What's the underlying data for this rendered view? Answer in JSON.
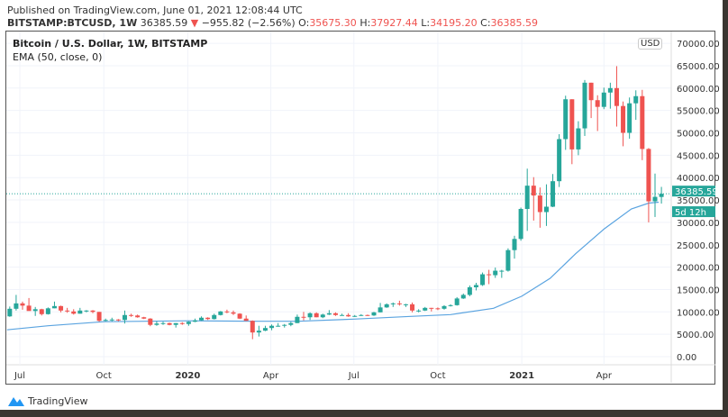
{
  "header": {
    "published": "Published on TradingView.com, June 01, 2021 12:08:44 UTC",
    "symbol": "BITSTAMP:BTCUSD, 1W",
    "last": "36385.59",
    "change": "−955.82 (−2.56%)",
    "o_label": "O:",
    "o": "35675.30",
    "h_label": "H:",
    "h": "37927.44",
    "l_label": "L:",
    "l": "34195.20",
    "c_label": "C:",
    "c": "36385.59"
  },
  "chart_title": "Bitcoin / U.S. Dollar, 1W, BITSTAMP",
  "indicator_label": "EMA (50, close, 0)",
  "currency_button": "USD",
  "price_badge": {
    "price": "36385.59",
    "countdown": "5d 12h"
  },
  "footer": {
    "logo_text": "TradingView"
  },
  "colors": {
    "up": "#26a69a",
    "down": "#ef5350",
    "ema": "#5ba4e0",
    "badge": "#26a69a"
  },
  "chart_data": {
    "type": "candlestick",
    "title": "Bitcoin / U.S. Dollar, 1W, BITSTAMP",
    "ylim": [
      0,
      70000
    ],
    "grid": true,
    "y_ticks": [
      "0.00",
      "5000.00",
      "10000.00",
      "15000.00",
      "20000.00",
      "25000.00",
      "30000.00",
      "35000.00",
      "40000.00",
      "45000.00",
      "50000.00",
      "55000.00",
      "60000.00",
      "65000.00",
      "70000.00"
    ],
    "x_ticks": [
      {
        "label": "Jul",
        "date": "2019-07-01",
        "bold": false
      },
      {
        "label": "Oct",
        "date": "2019-10-01",
        "bold": false
      },
      {
        "label": "2020",
        "date": "2020-01-01",
        "bold": true
      },
      {
        "label": "Apr",
        "date": "2020-04-01",
        "bold": false
      },
      {
        "label": "Jul",
        "date": "2020-07-01",
        "bold": false
      },
      {
        "label": "Oct",
        "date": "2020-10-01",
        "bold": false
      },
      {
        "label": "2021",
        "date": "2021-01-01",
        "bold": true
      },
      {
        "label": "Apr",
        "date": "2021-04-01",
        "bold": false
      }
    ],
    "candles_columns": [
      "date",
      "open",
      "high",
      "low",
      "close"
    ],
    "candles": [
      [
        "2019-06-17",
        9000,
        11200,
        8900,
        10700
      ],
      [
        "2019-06-24",
        10700,
        13800,
        10300,
        11900
      ],
      [
        "2019-07-01",
        11900,
        12300,
        10500,
        11400
      ],
      [
        "2019-07-08",
        11400,
        13100,
        10400,
        10200
      ],
      [
        "2019-07-15",
        10200,
        11100,
        9100,
        10600
      ],
      [
        "2019-07-22",
        10600,
        10700,
        9200,
        9500
      ],
      [
        "2019-07-29",
        9500,
        11000,
        9400,
        10800
      ],
      [
        "2019-08-05",
        10800,
        12300,
        10800,
        11300
      ],
      [
        "2019-08-12",
        11300,
        11400,
        9900,
        10300
      ],
      [
        "2019-08-19",
        10300,
        10900,
        9800,
        10100
      ],
      [
        "2019-08-26",
        10100,
        10600,
        9400,
        9600
      ],
      [
        "2019-09-02",
        9600,
        10900,
        9600,
        10300
      ],
      [
        "2019-09-09",
        10300,
        10400,
        9900,
        10300
      ],
      [
        "2019-09-16",
        10300,
        10400,
        9700,
        10000
      ],
      [
        "2019-09-23",
        10000,
        10000,
        7800,
        8000
      ],
      [
        "2019-09-30",
        8000,
        8500,
        7900,
        8200
      ],
      [
        "2019-10-07",
        8200,
        8700,
        7900,
        8300
      ],
      [
        "2019-10-14",
        8300,
        8400,
        7900,
        8200
      ],
      [
        "2019-10-21",
        8200,
        10300,
        7400,
        9300
      ],
      [
        "2019-10-28",
        9300,
        9600,
        8900,
        9200
      ],
      [
        "2019-11-04",
        9200,
        9400,
        8700,
        8800
      ],
      [
        "2019-11-11",
        8800,
        8900,
        8400,
        8500
      ],
      [
        "2019-11-18",
        8500,
        8600,
        6800,
        7100
      ],
      [
        "2019-11-25",
        7100,
        7900,
        6900,
        7400
      ],
      [
        "2019-12-02",
        7400,
        7800,
        7100,
        7500
      ],
      [
        "2019-12-09",
        7500,
        7600,
        7000,
        7100
      ],
      [
        "2019-12-16",
        7100,
        7500,
        6500,
        7500
      ],
      [
        "2019-12-23",
        7500,
        7700,
        7100,
        7300
      ],
      [
        "2019-12-30",
        7300,
        7900,
        6900,
        7800
      ],
      [
        "2020-01-06",
        7800,
        8500,
        7700,
        8100
      ],
      [
        "2020-01-13",
        8100,
        9000,
        8000,
        8700
      ],
      [
        "2020-01-20",
        8700,
        8800,
        8200,
        8400
      ],
      [
        "2020-01-27",
        8400,
        9600,
        8300,
        9300
      ],
      [
        "2020-02-03",
        9300,
        10200,
        9200,
        10100
      ],
      [
        "2020-02-10",
        10100,
        10500,
        9700,
        9900
      ],
      [
        "2020-02-17",
        9900,
        10300,
        9300,
        9600
      ],
      [
        "2020-02-24",
        9600,
        9700,
        8400,
        8500
      ],
      [
        "2020-03-02",
        8500,
        9200,
        8000,
        8000
      ],
      [
        "2020-03-09",
        8000,
        8100,
        3900,
        5400
      ],
      [
        "2020-03-16",
        5400,
        6900,
        4500,
        5800
      ],
      [
        "2020-03-23",
        5800,
        6900,
        5700,
        6400
      ],
      [
        "2020-03-30",
        6400,
        7200,
        5900,
        6900
      ],
      [
        "2020-04-06",
        6900,
        7500,
        6700,
        6900
      ],
      [
        "2020-04-13",
        6900,
        7300,
        6500,
        7100
      ],
      [
        "2020-04-20",
        7100,
        7800,
        6800,
        7500
      ],
      [
        "2020-04-27",
        7500,
        9400,
        7500,
        8900
      ],
      [
        "2020-05-04",
        8900,
        10000,
        8100,
        8800
      ],
      [
        "2020-05-11",
        8800,
        9900,
        8200,
        9700
      ],
      [
        "2020-05-18",
        9700,
        9900,
        8800,
        8800
      ],
      [
        "2020-05-25",
        8800,
        9600,
        8600,
        9400
      ],
      [
        "2020-06-01",
        9400,
        10400,
        9300,
        9700
      ],
      [
        "2020-06-08",
        9700,
        9900,
        9100,
        9300
      ],
      [
        "2020-06-15",
        9300,
        9600,
        9200,
        9300
      ],
      [
        "2020-06-22",
        9300,
        9700,
        8900,
        9000
      ],
      [
        "2020-06-29",
        9000,
        9300,
        8900,
        9100
      ],
      [
        "2020-07-06",
        9100,
        9500,
        9100,
        9300
      ],
      [
        "2020-07-13",
        9300,
        9400,
        9100,
        9200
      ],
      [
        "2020-07-20",
        9200,
        10000,
        9100,
        9900
      ],
      [
        "2020-07-27",
        9900,
        12000,
        9900,
        11000
      ],
      [
        "2020-08-03",
        11000,
        11900,
        10900,
        11700
      ],
      [
        "2020-08-10",
        11700,
        12100,
        11100,
        11900
      ],
      [
        "2020-08-17",
        11900,
        12500,
        11400,
        11700
      ],
      [
        "2020-08-24",
        11700,
        11800,
        11100,
        11700
      ],
      [
        "2020-08-31",
        11700,
        12100,
        9900,
        10300
      ],
      [
        "2020-09-07",
        10300,
        10600,
        9900,
        10300
      ],
      [
        "2020-09-14",
        10300,
        11100,
        10200,
        10900
      ],
      [
        "2020-09-21",
        10900,
        10900,
        10100,
        10800
      ],
      [
        "2020-09-28",
        10800,
        11000,
        10400,
        10700
      ],
      [
        "2020-10-05",
        10700,
        11500,
        10500,
        11300
      ],
      [
        "2020-10-12",
        11300,
        11700,
        11200,
        11500
      ],
      [
        "2020-10-19",
        11500,
        13300,
        11400,
        13000
      ],
      [
        "2020-10-26",
        13000,
        14100,
        12900,
        13800
      ],
      [
        "2020-11-02",
        13800,
        15900,
        13500,
        15500
      ],
      [
        "2020-11-09",
        15500,
        16500,
        14800,
        16000
      ],
      [
        "2020-11-16",
        16000,
        18800,
        15800,
        18400
      ],
      [
        "2020-11-23",
        18400,
        19400,
        16200,
        18200
      ],
      [
        "2020-11-30",
        18200,
        19900,
        17600,
        19200
      ],
      [
        "2020-12-07",
        19200,
        19400,
        17600,
        19200
      ],
      [
        "2020-12-14",
        19200,
        24200,
        19000,
        23800
      ],
      [
        "2020-12-21",
        23800,
        27000,
        21900,
        26300
      ],
      [
        "2020-12-28",
        26300,
        33300,
        25900,
        33000
      ],
      [
        "2021-01-04",
        33000,
        42000,
        28100,
        38200
      ],
      [
        "2021-01-11",
        38200,
        40100,
        30400,
        36000
      ],
      [
        "2021-01-18",
        36000,
        37800,
        28800,
        32300
      ],
      [
        "2021-01-25",
        32300,
        38500,
        29200,
        33500
      ],
      [
        "2021-02-01",
        33500,
        40800,
        33400,
        39200
      ],
      [
        "2021-02-08",
        39200,
        49700,
        37900,
        48600
      ],
      [
        "2021-02-15",
        48600,
        58300,
        46200,
        57500
      ],
      [
        "2021-02-22",
        57500,
        57500,
        43000,
        46300
      ],
      [
        "2021-03-01",
        46300,
        52600,
        45000,
        51000
      ],
      [
        "2021-03-08",
        51000,
        61800,
        49300,
        61200
      ],
      [
        "2021-03-15",
        61200,
        61200,
        53300,
        57300
      ],
      [
        "2021-03-22",
        57300,
        58400,
        50400,
        55800
      ],
      [
        "2021-03-29",
        55800,
        60100,
        55300,
        59000
      ],
      [
        "2021-04-05",
        59000,
        61200,
        55400,
        60000
      ],
      [
        "2021-04-12",
        60000,
        64900,
        51400,
        56000
      ],
      [
        "2021-04-19",
        56000,
        57000,
        47000,
        50000
      ],
      [
        "2021-04-26",
        50000,
        57900,
        48700,
        56600
      ],
      [
        "2021-05-03",
        56600,
        59500,
        52900,
        58200
      ],
      [
        "2021-05-10",
        58200,
        59600,
        43900,
        46400
      ],
      [
        "2021-05-17",
        46400,
        46600,
        30000,
        34700
      ],
      [
        "2021-05-24",
        34700,
        40900,
        31200,
        35700
      ],
      [
        "2021-05-31",
        35675.3,
        37927.44,
        34195.2,
        36385.59
      ]
    ],
    "ema": {
      "name": "EMA (50, close, 0)",
      "points": [
        [
          "2019-06-17",
          6000
        ],
        [
          "2019-08-01",
          6900
        ],
        [
          "2019-10-01",
          7800
        ],
        [
          "2020-01-01",
          8000
        ],
        [
          "2020-03-15",
          7900
        ],
        [
          "2020-05-01",
          7900
        ],
        [
          "2020-07-01",
          8400
        ],
        [
          "2020-09-01",
          9000
        ],
        [
          "2020-10-15",
          9400
        ],
        [
          "2020-12-01",
          10800
        ],
        [
          "2021-01-01",
          13500
        ],
        [
          "2021-02-01",
          17500
        ],
        [
          "2021-03-01",
          23000
        ],
        [
          "2021-04-01",
          28500
        ],
        [
          "2021-05-01",
          33000
        ],
        [
          "2021-05-20",
          34300
        ],
        [
          "2021-05-31",
          34500
        ]
      ]
    },
    "last_price_line": 36385.59
  }
}
